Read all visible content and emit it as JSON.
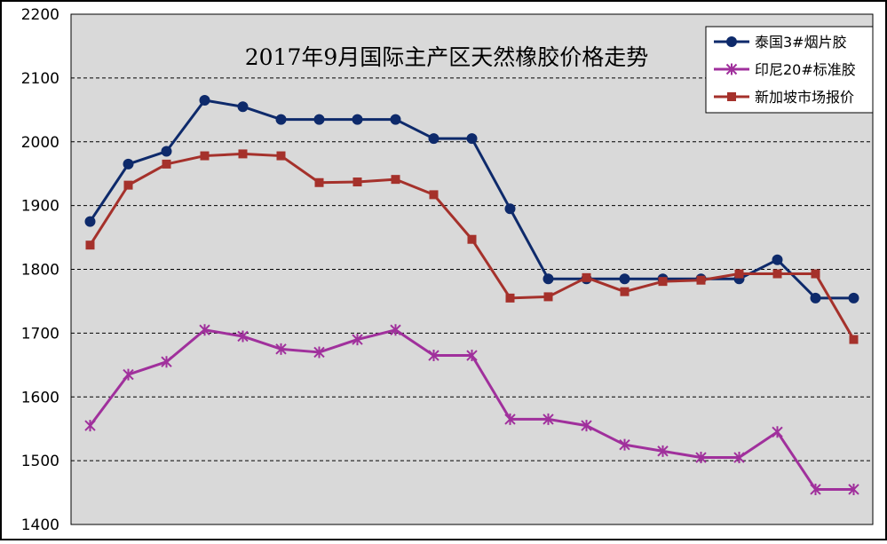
{
  "chart_data": {
    "type": "line",
    "title": "2017年9月国际主产区天然橡胶价格走势",
    "xlabel": "",
    "ylabel": "",
    "ylim": [
      1400,
      2200
    ],
    "yticks": [
      1400,
      1500,
      1600,
      1700,
      1800,
      1900,
      2000,
      2100,
      2200
    ],
    "x": [
      1,
      2,
      3,
      4,
      5,
      6,
      7,
      8,
      9,
      10,
      11,
      12,
      13,
      14,
      15,
      16,
      17,
      18,
      19,
      20,
      21
    ],
    "grid": "horizontal dashed",
    "legend_position": "top-right",
    "series": [
      {
        "name": "泰国3#烟片胶",
        "color": "#0e2a6b",
        "marker": "circle",
        "values": [
          1875,
          1965,
          1985,
          2065,
          2055,
          2035,
          2035,
          2035,
          2035,
          2005,
          2005,
          1895,
          1785,
          1785,
          1785,
          1785,
          1785,
          1785,
          1815,
          1755,
          1755
        ]
      },
      {
        "name": "印尼20#标准胶",
        "color": "#a0309c",
        "marker": "asterisk",
        "values": [
          1555,
          1635,
          1655,
          1705,
          1695,
          1675,
          1670,
          1690,
          1705,
          1665,
          1665,
          1565,
          1565,
          1555,
          1525,
          1515,
          1505,
          1505,
          1545,
          1455,
          1455
        ]
      },
      {
        "name": "新加坡市场报价",
        "color": "#a5312b",
        "marker": "square",
        "values": [
          1838,
          1932,
          1965,
          1978,
          1981,
          1978,
          1936,
          1937,
          1941,
          1917,
          1847,
          1755,
          1757,
          1787,
          1765,
          1781,
          1783,
          1793,
          1793,
          1793,
          1690
        ]
      }
    ]
  }
}
